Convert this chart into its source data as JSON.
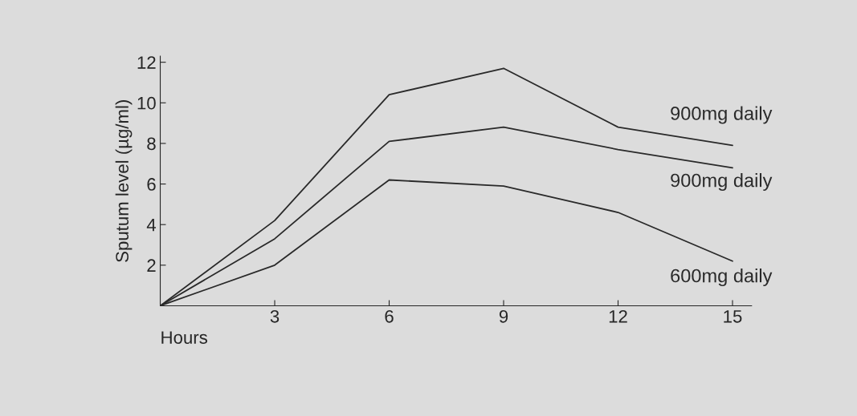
{
  "chart_data": {
    "type": "line",
    "xlabel": "Hours",
    "ylabel": "Sputum level (µg/ml)",
    "x": [
      0,
      3,
      6,
      9,
      12,
      15
    ],
    "series": [
      {
        "name": "900mg daily",
        "color": "#2a2a2a",
        "values": [
          0,
          4.2,
          10.4,
          11.7,
          8.8,
          7.9
        ]
      },
      {
        "name": "900mg daily",
        "color": "#2a2a2a",
        "values": [
          0,
          3.3,
          8.1,
          8.8,
          7.7,
          6.8
        ]
      },
      {
        "name": "600mg daily",
        "color": "#2a2a2a",
        "values": [
          0,
          2.0,
          6.2,
          5.9,
          4.6,
          2.2
        ]
      }
    ],
    "xlim": [
      0,
      15.5
    ],
    "xticks": [
      3,
      6,
      9,
      12,
      15
    ],
    "ylim": [
      0,
      12.3
    ],
    "yticks": [
      2,
      4,
      6,
      8,
      10,
      12
    ],
    "grid": false,
    "legend": false,
    "marker": "none",
    "line_style": "solid"
  }
}
